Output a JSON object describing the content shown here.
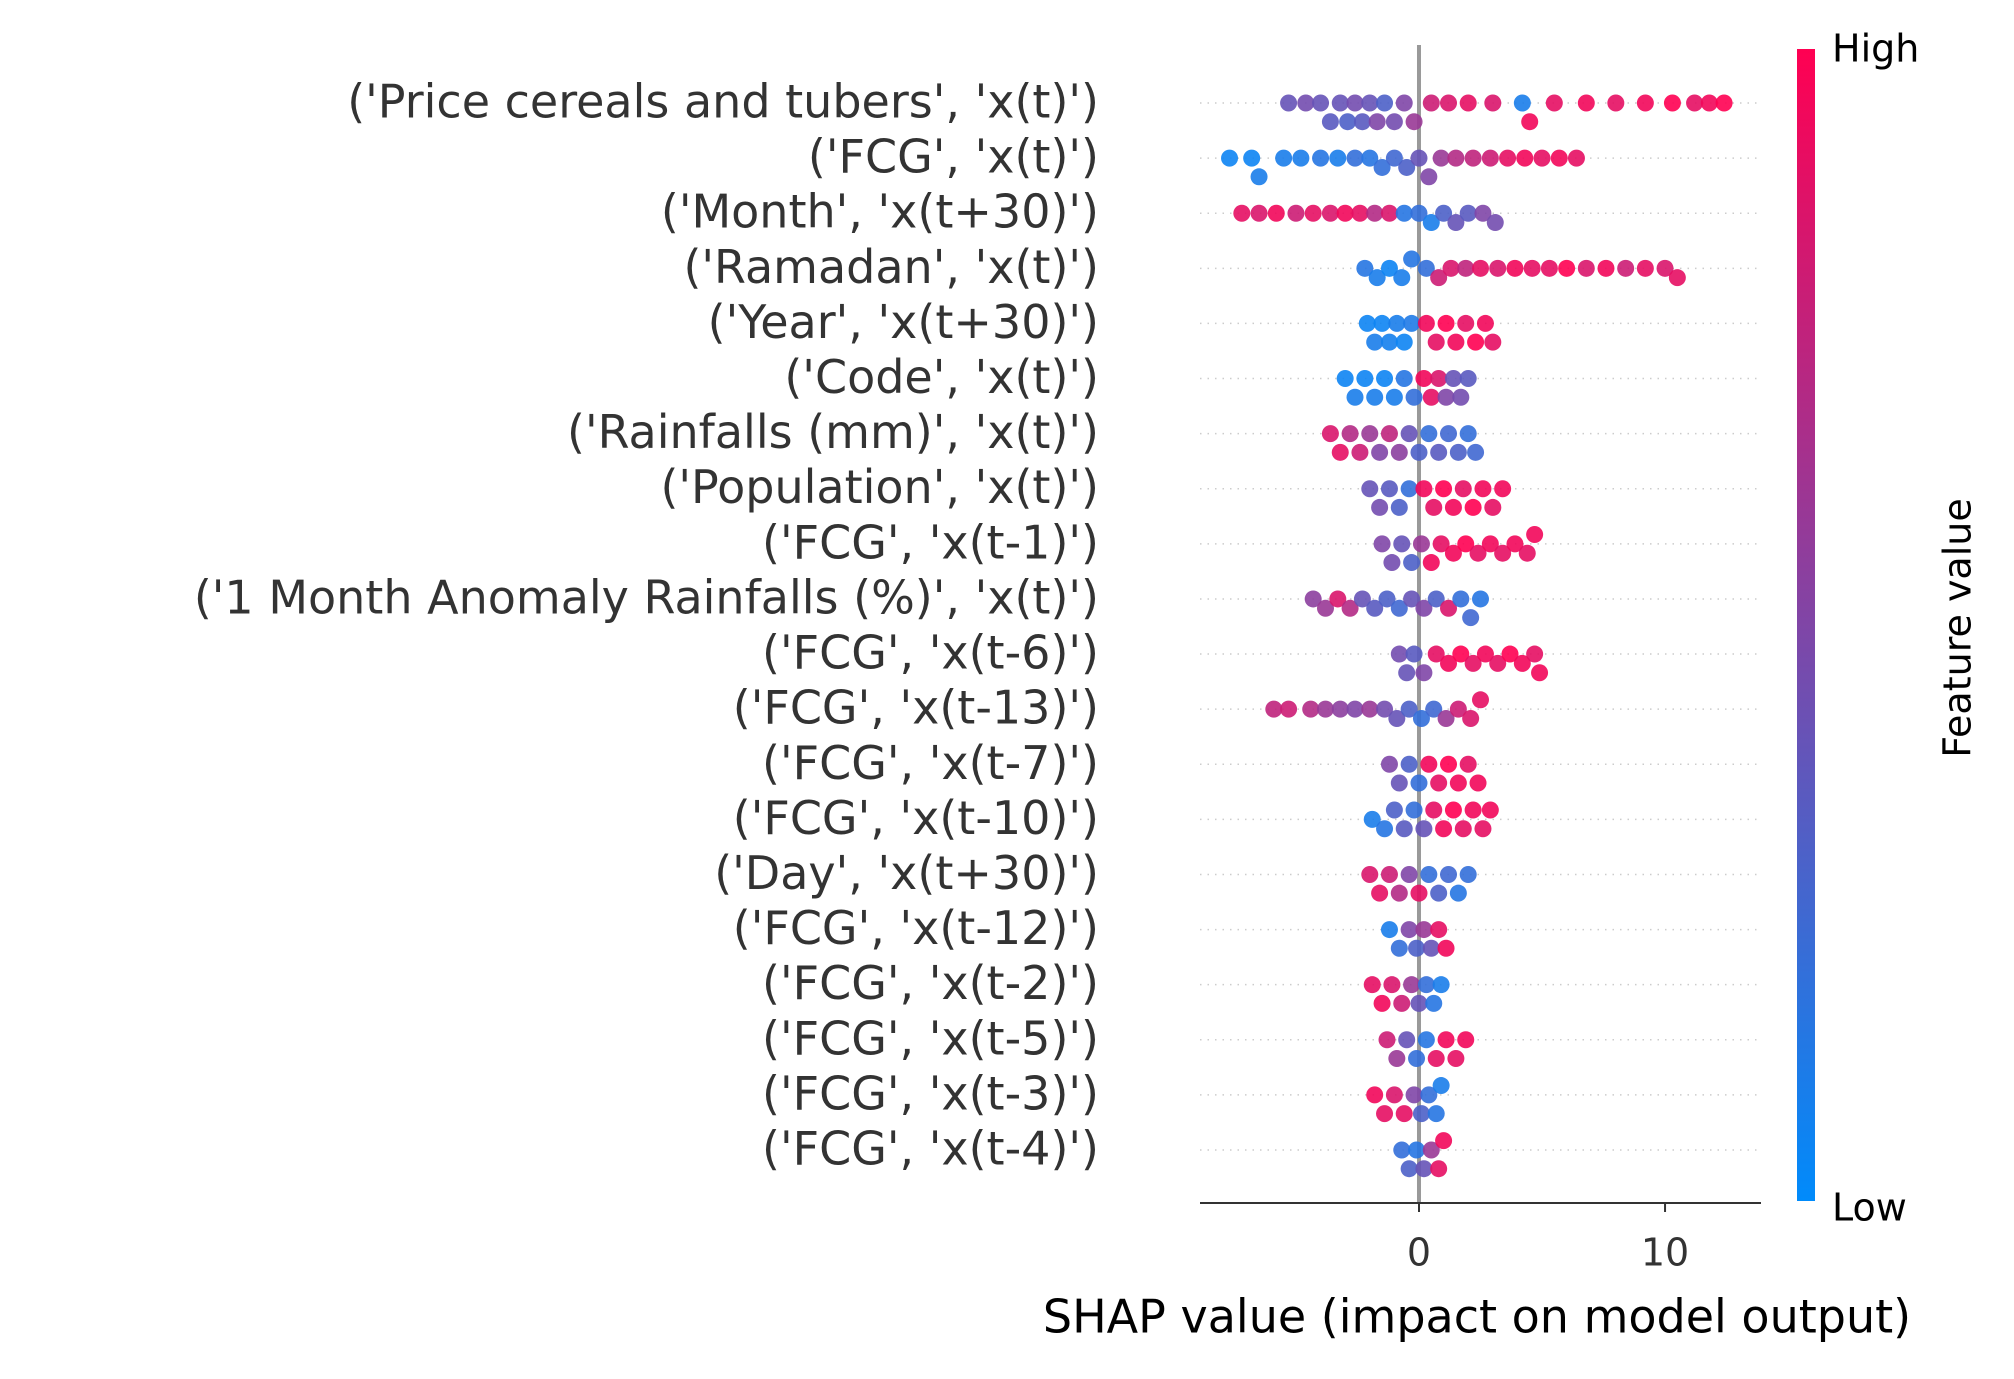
{
  "chart_data": {
    "type": "beeswarm",
    "xlabel": "SHAP value (impact on model output)",
    "xlim": [
      -8.9,
      13.9
    ],
    "xticks": [
      0,
      10
    ],
    "colorbar": {
      "title": "Feature value",
      "high_label": "High",
      "low_label": "Low",
      "colors": [
        "#008bfb",
        "#ff0052"
      ]
    },
    "categories": [
      "('Price cereals and tubers', 'x(t)')",
      "('FCG', 'x(t)')",
      "('Month', 'x(t+30)')",
      "('Ramadan', 'x(t)')",
      "('Year', 'x(t+30)')",
      "('Code', 'x(t)')",
      "('Rainfalls (mm)', 'x(t)')",
      "('Population', 'x(t)')",
      "('FCG', 'x(t-1)')",
      "('1 Month Anomaly Rainfalls (%)', 'x(t)')",
      "('FCG', 'x(t-6)')",
      "('FCG', 'x(t-13)')",
      "('FCG', 'x(t-7)')",
      "('FCG', 'x(t-10)')",
      "('Day', 'x(t+30)')",
      "('FCG', 'x(t-12)')",
      "('FCG', 'x(t-2)')",
      "('FCG', 'x(t-5)')",
      "('FCG', 'x(t-3)')",
      "('FCG', 'x(t-4)')"
    ],
    "rows": [
      {
        "shap": [
          -5.3,
          -4.6,
          -4.0,
          -3.6,
          -3.2,
          -2.9,
          -2.6,
          -2.3,
          -2.0,
          -1.7,
          -1.4,
          -1.0,
          -0.6,
          -0.2,
          0.5,
          1.2,
          2.0,
          3.0,
          4.2,
          4.5,
          5.5,
          6.8,
          8.0,
          9.2,
          10.3,
          11.2,
          11.8,
          12.4
        ],
        "feature": [
          0.4,
          0.45,
          0.4,
          0.35,
          0.4,
          0.3,
          0.45,
          0.35,
          0.4,
          0.5,
          0.3,
          0.45,
          0.5,
          0.6,
          0.8,
          0.85,
          0.9,
          0.85,
          0.1,
          0.95,
          0.9,
          0.95,
          0.9,
          0.95,
          1,
          0.9,
          0.95,
          1
        ]
      },
      {
        "shap": [
          -7.7,
          -6.8,
          -6.5,
          -5.5,
          -4.8,
          -4.0,
          -3.3,
          -2.6,
          -2.0,
          -1.5,
          -1.0,
          -0.5,
          0,
          0.4,
          0.9,
          1.5,
          2.2,
          2.9,
          3.6,
          4.3,
          5.0,
          5.7,
          6.4
        ],
        "feature": [
          0.05,
          0.05,
          0.1,
          0.1,
          0.1,
          0.15,
          0.1,
          0.2,
          0.15,
          0.2,
          0.25,
          0.3,
          0.4,
          0.5,
          0.6,
          0.7,
          0.75,
          0.8,
          0.9,
          0.95,
          0.9,
          0.95,
          0.9
        ]
      },
      {
        "shap": [
          -7.2,
          -6.5,
          -5.8,
          -5.0,
          -4.3,
          -3.6,
          -3.0,
          -2.4,
          -1.8,
          -1.2,
          -0.6,
          0,
          0.5,
          1.0,
          1.5,
          2.0,
          2.6,
          3.1
        ],
        "feature": [
          0.9,
          0.85,
          0.95,
          0.8,
          0.9,
          0.85,
          0.95,
          0.9,
          0.7,
          0.85,
          0.15,
          0.2,
          0.1,
          0.3,
          0.4,
          0.35,
          0.5,
          0.45
        ]
      },
      {
        "shap": [
          -2.2,
          -1.7,
          -1.2,
          -0.7,
          -0.3,
          0.3,
          0.8,
          1.3,
          1.9,
          2.5,
          3.2,
          3.9,
          4.6,
          5.3,
          6.0,
          6.8,
          7.6,
          8.4,
          9.2,
          10.0,
          10.5
        ],
        "feature": [
          0.15,
          0.1,
          0.05,
          0.1,
          0.15,
          0.2,
          0.8,
          0.85,
          0.75,
          0.9,
          0.85,
          0.95,
          0.9,
          0.9,
          1,
          0.85,
          0.95,
          0.8,
          0.9,
          0.85,
          0.9
        ]
      },
      {
        "shap": [
          -2.1,
          -1.8,
          -1.5,
          -1.2,
          -0.9,
          -0.6,
          -0.3,
          0.3,
          0.7,
          1.1,
          1.5,
          1.9,
          2.3,
          2.7,
          3.0
        ],
        "feature": [
          0.05,
          0.1,
          0.05,
          0.08,
          0.1,
          0.05,
          0.12,
          0.95,
          0.9,
          1,
          0.95,
          0.9,
          1,
          0.95,
          0.9
        ]
      },
      {
        "shap": [
          -3.0,
          -2.6,
          -2.2,
          -1.8,
          -1.4,
          -1.0,
          -0.6,
          -0.2,
          0.2,
          0.5,
          0.8,
          1.1,
          1.4,
          1.7,
          2.0
        ],
        "feature": [
          0.05,
          0.1,
          0.05,
          0.1,
          0.05,
          0.1,
          0.15,
          0.2,
          0.95,
          0.9,
          0.85,
          0.5,
          0.4,
          0.45,
          0.35
        ]
      },
      {
        "shap": [
          -3.6,
          -3.2,
          -2.8,
          -2.4,
          -2.0,
          -1.6,
          -1.2,
          -0.8,
          -0.4,
          0,
          0.4,
          0.8,
          1.2,
          1.6,
          2.0,
          2.3
        ],
        "feature": [
          0.85,
          0.9,
          0.7,
          0.8,
          0.6,
          0.5,
          0.75,
          0.55,
          0.4,
          0.3,
          0.2,
          0.35,
          0.25,
          0.3,
          0.2,
          0.25
        ]
      },
      {
        "shap": [
          -2.0,
          -1.6,
          -1.2,
          -0.8,
          -0.4,
          0.2,
          0.6,
          1.0,
          1.4,
          1.8,
          2.2,
          2.6,
          3.0,
          3.4
        ],
        "feature": [
          0.4,
          0.45,
          0.35,
          0.3,
          0.2,
          0.95,
          0.9,
          1,
          0.95,
          0.9,
          1,
          0.95,
          0.9,
          0.95
        ]
      },
      {
        "shap": [
          -1.5,
          -1.1,
          -0.7,
          -0.3,
          0.1,
          0.5,
          0.9,
          1.4,
          1.9,
          2.4,
          2.9,
          3.4,
          3.9,
          4.4,
          4.7
        ],
        "feature": [
          0.5,
          0.45,
          0.4,
          0.3,
          0.6,
          0.95,
          0.9,
          0.95,
          1,
          0.9,
          0.95,
          0.9,
          0.95,
          0.9,
          0.95
        ]
      },
      {
        "shap": [
          -4.3,
          -3.8,
          -3.3,
          -2.8,
          -2.3,
          -1.8,
          -1.3,
          -0.8,
          -0.3,
          0.2,
          0.7,
          1.2,
          1.7,
          2.1,
          2.5
        ],
        "feature": [
          0.55,
          0.6,
          0.85,
          0.7,
          0.4,
          0.35,
          0.3,
          0.25,
          0.4,
          0.5,
          0.3,
          0.85,
          0.2,
          0.25,
          0.15
        ]
      },
      {
        "shap": [
          -0.8,
          -0.5,
          -0.2,
          0.2,
          0.7,
          1.2,
          1.7,
          2.2,
          2.7,
          3.2,
          3.7,
          4.2,
          4.7,
          4.9
        ],
        "feature": [
          0.45,
          0.4,
          0.35,
          0.5,
          0.9,
          0.95,
          1,
          0.9,
          0.95,
          0.9,
          1,
          0.95,
          0.9,
          0.95
        ]
      },
      {
        "shap": [
          -5.9,
          -5.3,
          -4.4,
          -3.8,
          -3.2,
          -2.6,
          -2.0,
          -1.4,
          -0.9,
          -0.4,
          0.1,
          0.6,
          1.1,
          1.6,
          2.1,
          2.5
        ],
        "feature": [
          0.75,
          0.8,
          0.7,
          0.6,
          0.55,
          0.5,
          0.6,
          0.45,
          0.4,
          0.3,
          0.2,
          0.25,
          0.6,
          0.8,
          0.85,
          0.9
        ]
      },
      {
        "shap": [
          -1.2,
          -0.8,
          -0.4,
          0,
          0.4,
          0.8,
          1.2,
          1.6,
          2.0,
          2.4
        ],
        "feature": [
          0.5,
          0.4,
          0.3,
          0.2,
          0.95,
          0.9,
          1,
          0.95,
          0.9,
          0.95
        ]
      },
      {
        "shap": [
          -1.9,
          -1.4,
          -1.0,
          -0.6,
          -0.2,
          0.2,
          0.6,
          1.0,
          1.4,
          1.8,
          2.2,
          2.6,
          2.9
        ],
        "feature": [
          0.1,
          0.15,
          0.3,
          0.35,
          0.2,
          0.4,
          0.9,
          0.95,
          1,
          0.9,
          0.95,
          0.9,
          0.95
        ]
      },
      {
        "shap": [
          -2.0,
          -1.6,
          -1.2,
          -0.8,
          -0.4,
          0,
          0.4,
          0.8,
          1.2,
          1.6,
          2.0
        ],
        "feature": [
          0.85,
          0.9,
          0.8,
          0.7,
          0.5,
          0.9,
          0.2,
          0.3,
          0.25,
          0.15,
          0.2
        ]
      },
      {
        "shap": [
          -1.2,
          -0.8,
          -0.4,
          -0.1,
          0.2,
          0.5,
          0.8,
          1.1
        ],
        "feature": [
          0.1,
          0.2,
          0.5,
          0.3,
          0.6,
          0.4,
          0.9,
          0.95
        ]
      },
      {
        "shap": [
          -1.9,
          -1.5,
          -1.1,
          -0.7,
          -0.3,
          0,
          0.3,
          0.6,
          0.9
        ],
        "feature": [
          0.9,
          0.95,
          0.85,
          0.8,
          0.6,
          0.4,
          0.2,
          0.15,
          0.1
        ]
      },
      {
        "shap": [
          -1.3,
          -0.9,
          -0.5,
          -0.1,
          0.3,
          0.7,
          1.1,
          1.5,
          1.9
        ],
        "feature": [
          0.8,
          0.6,
          0.4,
          0.2,
          0.15,
          0.9,
          0.95,
          0.9,
          0.95
        ]
      },
      {
        "shap": [
          -1.8,
          -1.4,
          -1.0,
          -0.6,
          -0.2,
          0.1,
          0.4,
          0.7,
          0.9
        ],
        "feature": [
          0.95,
          0.9,
          0.85,
          0.9,
          0.5,
          0.3,
          0.2,
          0.15,
          0.1
        ]
      },
      {
        "shap": [
          -0.7,
          -0.4,
          -0.1,
          0.2,
          0.5,
          0.8,
          1.0
        ],
        "feature": [
          0.2,
          0.3,
          0.15,
          0.4,
          0.6,
          0.9,
          0.95
        ]
      }
    ]
  }
}
